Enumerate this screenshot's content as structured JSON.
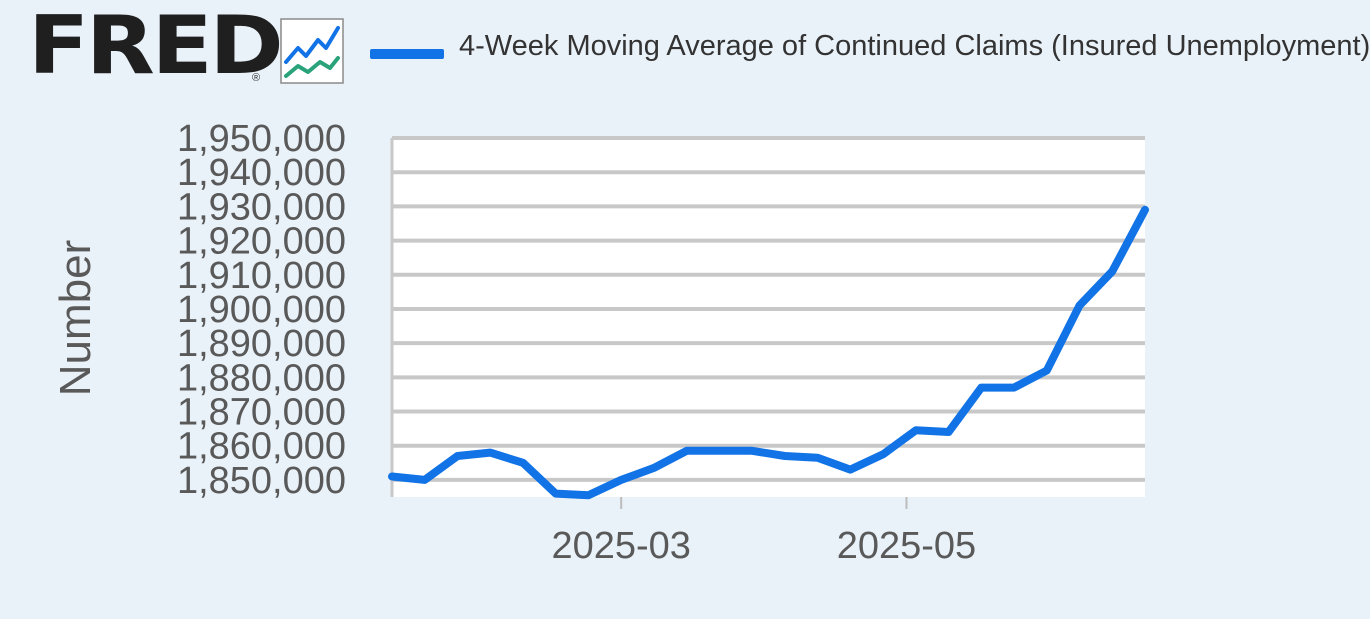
{
  "brand": {
    "name": "FRED",
    "registered_mark": "®"
  },
  "legend": {
    "label": "4-Week Moving Average of Continued Claims (Insured Unemployment)",
    "color": "#1173e6"
  },
  "chart_data": {
    "type": "line",
    "title": "",
    "xlabel": "",
    "ylabel": "Number",
    "ylim": [
      1845000,
      1950000
    ],
    "yticks": [
      1850000,
      1860000,
      1870000,
      1880000,
      1890000,
      1900000,
      1910000,
      1920000,
      1930000,
      1940000,
      1950000
    ],
    "ytick_labels": [
      "1,850,000",
      "1,860,000",
      "1,870,000",
      "1,880,000",
      "1,890,000",
      "1,900,000",
      "1,910,000",
      "1,920,000",
      "1,930,000",
      "1,940,000",
      "1,950,000"
    ],
    "xlim": [
      "2025-01-11",
      "2025-06-21"
    ],
    "xticks": [
      "2025-03-01",
      "2025-05-01"
    ],
    "xtick_labels": [
      "2025-03",
      "2025-05"
    ],
    "grid": true,
    "series": [
      {
        "name": "4-Week Moving Average of Continued Claims (Insured Unemployment)",
        "color": "#1173e6",
        "x": [
          "2025-01-11",
          "2025-01-18",
          "2025-01-25",
          "2025-02-01",
          "2025-02-08",
          "2025-02-15",
          "2025-02-22",
          "2025-03-01",
          "2025-03-08",
          "2025-03-15",
          "2025-03-22",
          "2025-03-29",
          "2025-04-05",
          "2025-04-12",
          "2025-04-19",
          "2025-04-26",
          "2025-05-03",
          "2025-05-10",
          "2025-05-17",
          "2025-05-24",
          "2025-05-31",
          "2025-06-07",
          "2025-06-14",
          "2025-06-21"
        ],
        "y": [
          1851000,
          1850000,
          1857000,
          1858000,
          1855000,
          1846000,
          1845500,
          1850000,
          1853500,
          1858500,
          1858500,
          1858500,
          1857000,
          1856500,
          1853000,
          1857500,
          1864500,
          1864000,
          1877000,
          1877000,
          1882000,
          1901000,
          1911000,
          1929000
        ]
      }
    ]
  }
}
